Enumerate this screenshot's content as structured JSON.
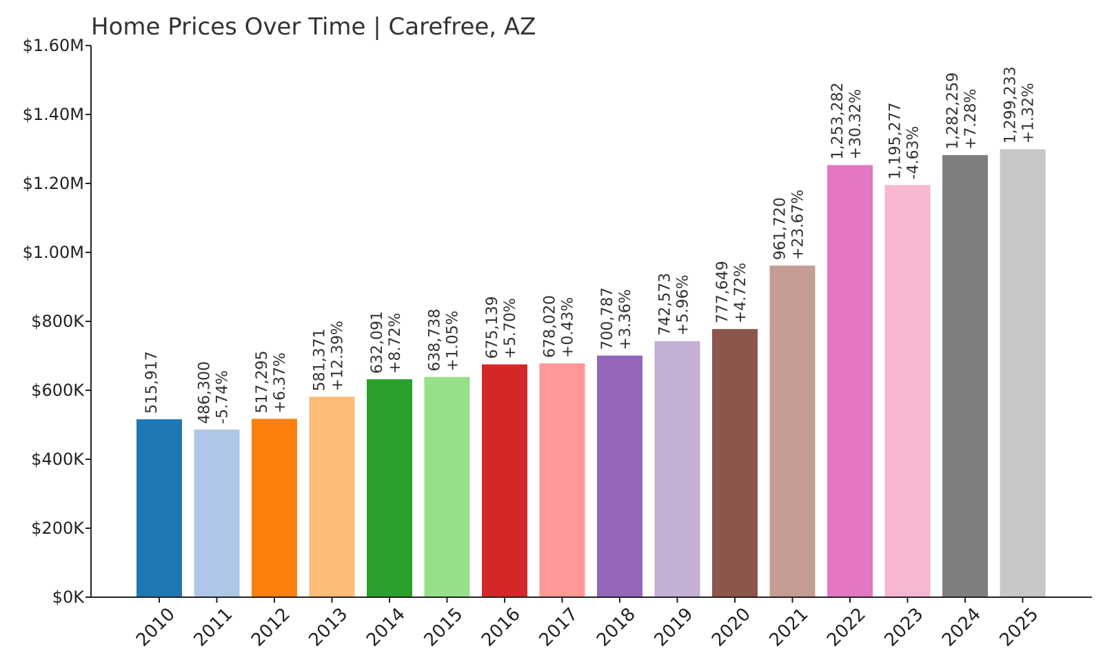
{
  "chart_data": {
    "type": "bar",
    "title": "Home Prices Over Time | Carefree, AZ",
    "xlabel": "",
    "ylabel": "",
    "ylim": [
      0,
      1600000
    ],
    "yticks": [
      {
        "value": 0,
        "label": "$0K"
      },
      {
        "value": 200000,
        "label": "$200K"
      },
      {
        "value": 400000,
        "label": "$400K"
      },
      {
        "value": 600000,
        "label": "$600K"
      },
      {
        "value": 800000,
        "label": "$800K"
      },
      {
        "value": 1000000,
        "label": "$1.00M"
      },
      {
        "value": 1200000,
        "label": "$1.20M"
      },
      {
        "value": 1400000,
        "label": "$1.40M"
      },
      {
        "value": 1600000,
        "label": "$1.60M"
      }
    ],
    "grid": false,
    "categories": [
      "2010",
      "2011",
      "2012",
      "2013",
      "2014",
      "2015",
      "2016",
      "2017",
      "2018",
      "2019",
      "2020",
      "2021",
      "2022",
      "2023",
      "2024",
      "2025"
    ],
    "values": [
      515917,
      486300,
      517295,
      581371,
      632091,
      638738,
      675139,
      678020,
      700787,
      742573,
      777649,
      961720,
      1253282,
      1195277,
      1282259,
      1299233
    ],
    "value_labels": [
      "515,917",
      "486,300",
      "517,295",
      "581,371",
      "632,091",
      "638,738",
      "675,139",
      "678,020",
      "700,787",
      "742,573",
      "777,649",
      "961,720",
      "1,253,282",
      "1,195,277",
      "1,282,259",
      "1,299,233"
    ],
    "change_labels": [
      "",
      "-5.74%",
      "+6.37%",
      "+12.39%",
      "+8.72%",
      "+1.05%",
      "+5.70%",
      "+0.43%",
      "+3.36%",
      "+5.96%",
      "+4.72%",
      "+23.67%",
      "+30.32%",
      "-4.63%",
      "+7.28%",
      "+1.32%"
    ],
    "colors": [
      "#1f77b4",
      "#aec7e8",
      "#ff7f0e",
      "#ffbb78",
      "#2ca02c",
      "#98df8a",
      "#d62728",
      "#ff9896",
      "#9467bd",
      "#c5b0d5",
      "#8c564b",
      "#c49c94",
      "#e377c2",
      "#f7b6d2",
      "#7f7f7f",
      "#c7c7c7"
    ]
  }
}
